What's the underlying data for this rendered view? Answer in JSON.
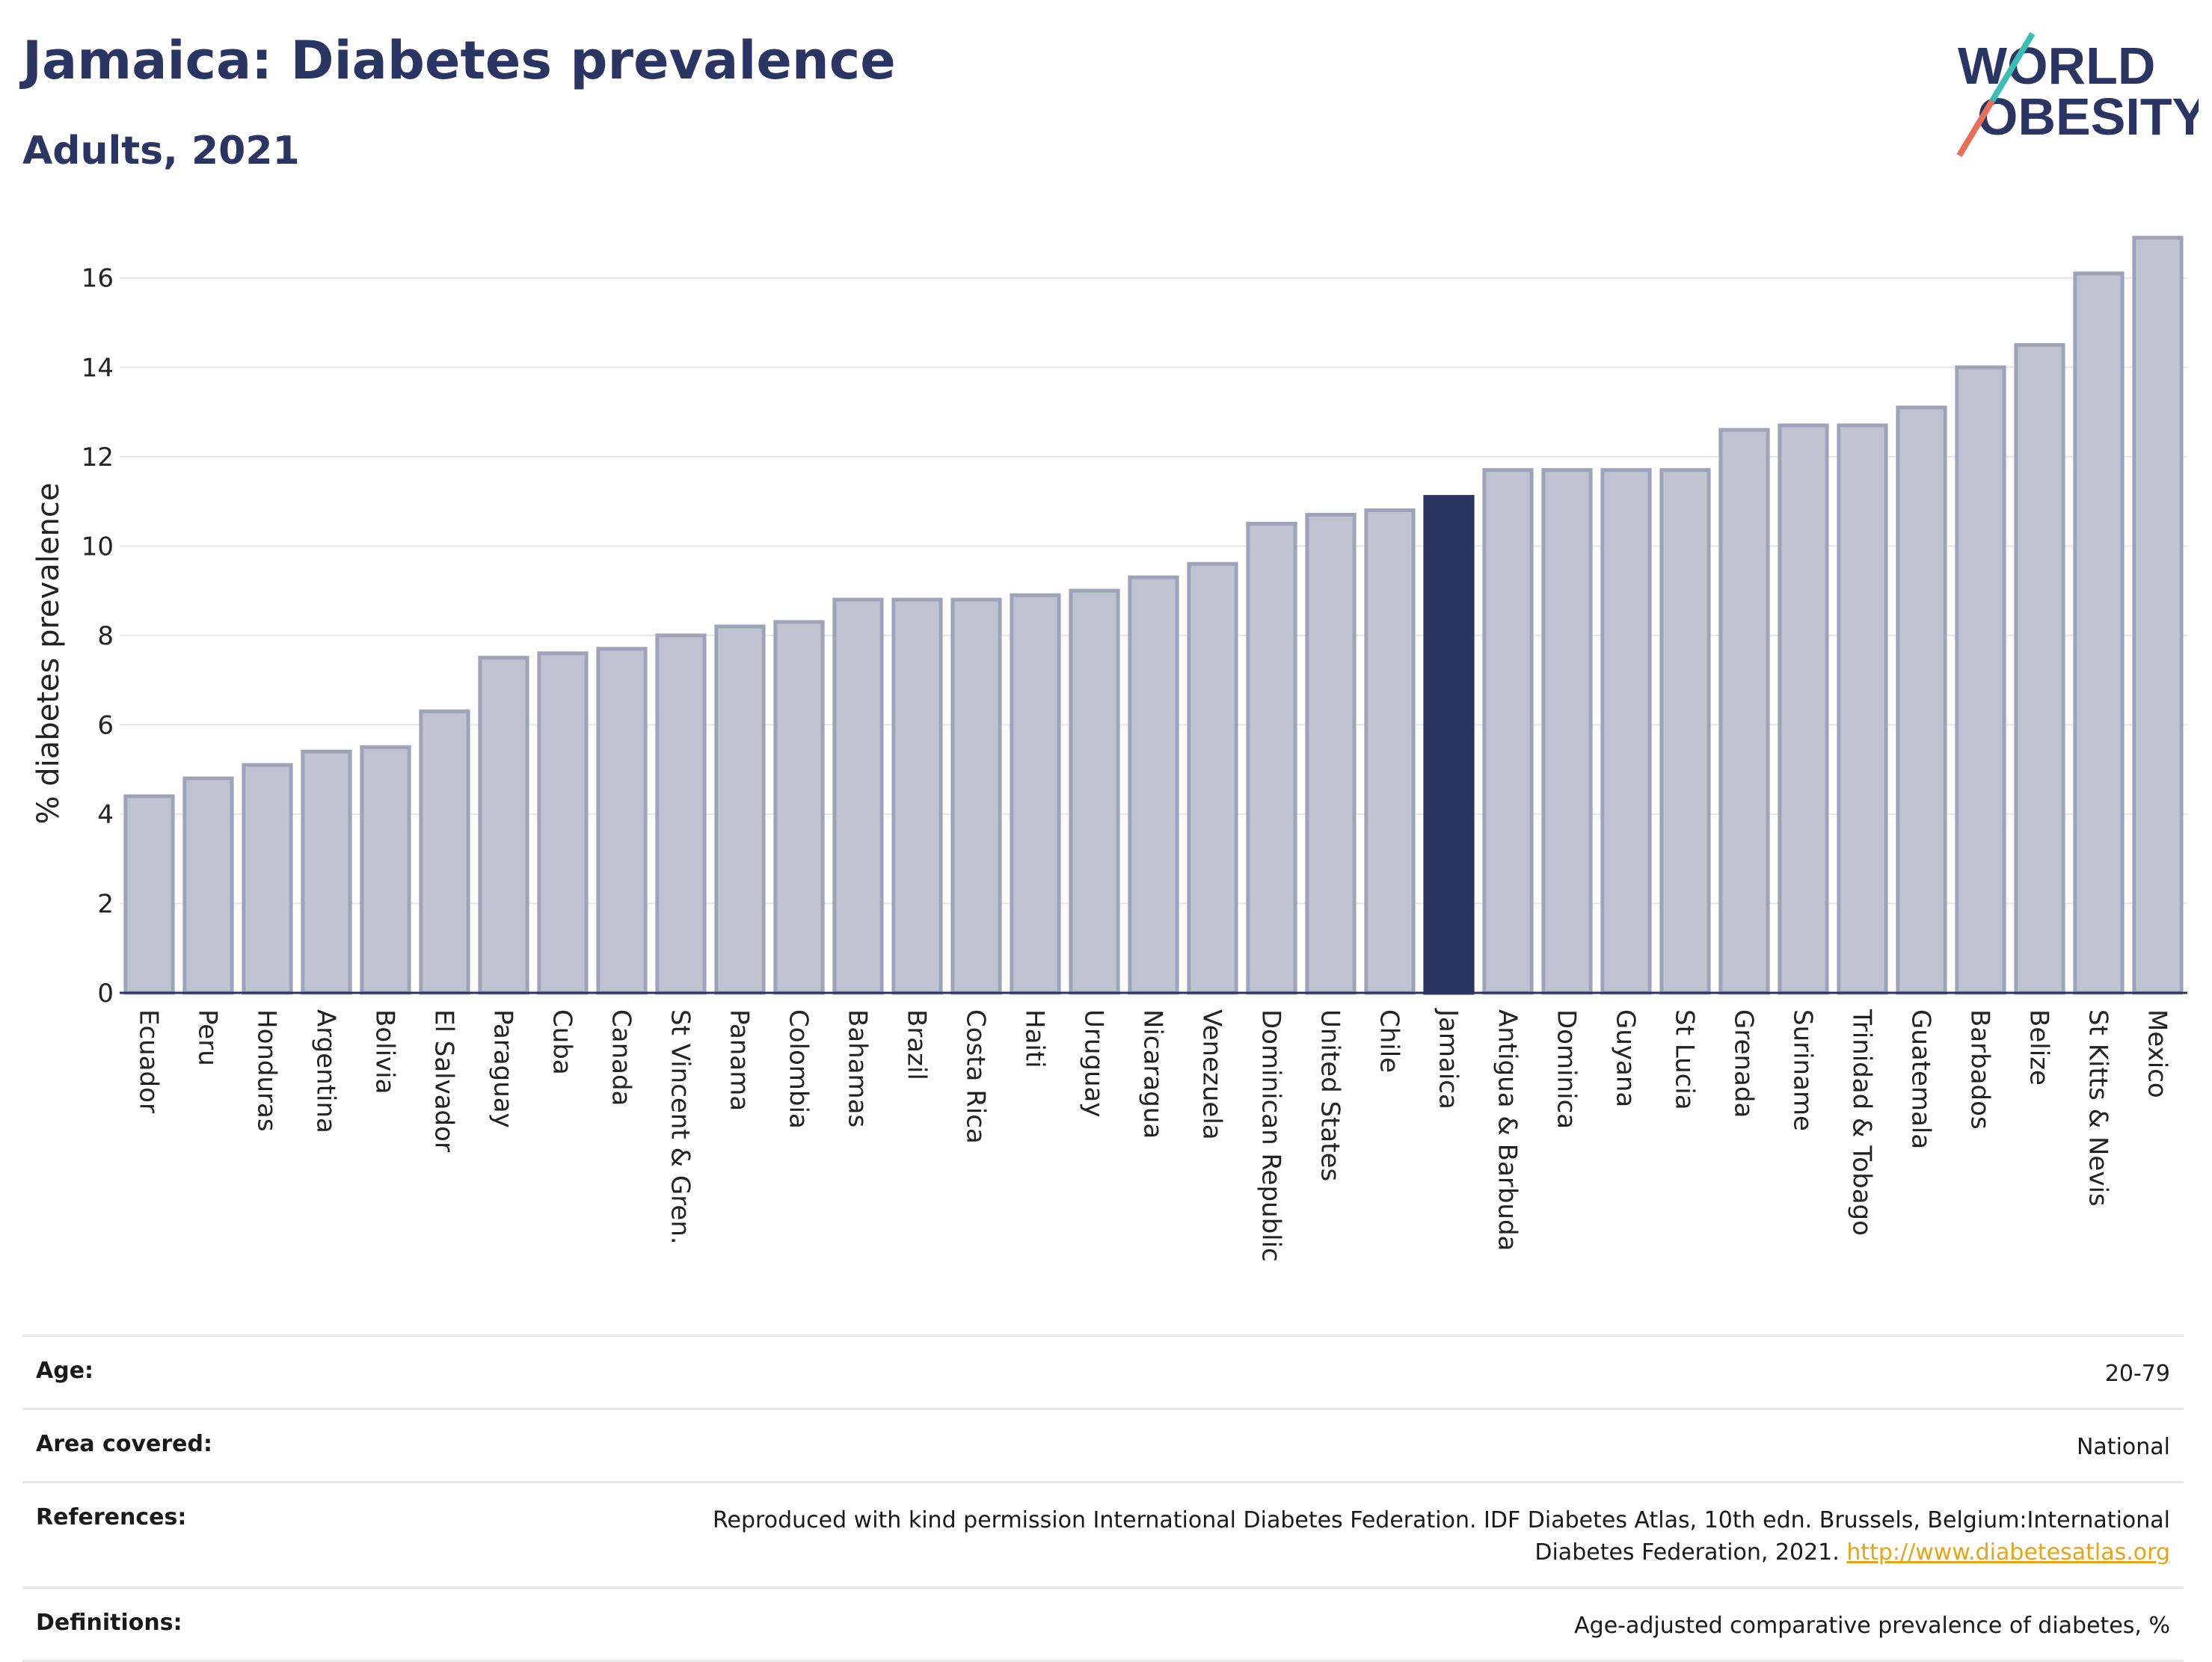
{
  "header": {
    "title": "Jamaica: Diabetes prevalence",
    "subtitle": "Adults, 2021",
    "logo_line1": "WORLD",
    "logo_line2": "OBESITY"
  },
  "colors": {
    "highlight": "#2b3563",
    "bar_fill": "#bfc2d0",
    "bar_stroke": "#9ea3ba",
    "logo_text": "#2b3563",
    "logo_accent_teal": "#3bbfb5",
    "logo_accent_red": "#e76f5a",
    "link": "#e8a317"
  },
  "chart_data": {
    "type": "bar",
    "title": "",
    "xlabel": "",
    "ylabel": "% diabetes prevalence",
    "ylim": [
      0,
      17.2
    ],
    "yticks": [
      0,
      2,
      4,
      6,
      8,
      10,
      12,
      14,
      16
    ],
    "grid": true,
    "highlight": "Jamaica",
    "categories": [
      "Ecuador",
      "Peru",
      "Honduras",
      "Argentina",
      "Bolivia",
      "El Salvador",
      "Paraguay",
      "Cuba",
      "Canada",
      "St Vincent & Gren.",
      "Panama",
      "Colombia",
      "Bahamas",
      "Brazil",
      "Costa Rica",
      "Haiti",
      "Uruguay",
      "Nicaragua",
      "Venezuela",
      "Dominican Republic",
      "United States",
      "Chile",
      "Jamaica",
      "Antigua & Barbuda",
      "Dominica",
      "Guyana",
      "St Lucia",
      "Grenada",
      "Suriname",
      "Trinidad & Tobago",
      "Guatemala",
      "Barbados",
      "Belize",
      "St Kitts & Nevis",
      "Mexico"
    ],
    "values": [
      4.4,
      4.8,
      5.1,
      5.4,
      5.5,
      6.3,
      7.5,
      7.6,
      7.7,
      8.0,
      8.2,
      8.3,
      8.8,
      8.8,
      8.8,
      8.9,
      9.0,
      9.3,
      9.6,
      10.5,
      10.7,
      10.8,
      11.1,
      11.7,
      11.7,
      11.7,
      11.7,
      12.6,
      12.7,
      12.7,
      13.1,
      14.0,
      14.5,
      16.1,
      16.9
    ]
  },
  "info": {
    "rows": [
      {
        "label": "Age:",
        "value": "20-79"
      },
      {
        "label": "Area covered:",
        "value": "National"
      },
      {
        "label": "References:",
        "value": "Reproduced with kind permission International Diabetes Federation.  IDF Diabetes Atlas, 10th edn. Brussels, Belgium:International Diabetes Federation, 2021.",
        "link": "http://www.diabetesatlas.org"
      },
      {
        "label": "Definitions:",
        "value": "Age-adjusted comparative prevalence of diabetes, %"
      }
    ]
  }
}
